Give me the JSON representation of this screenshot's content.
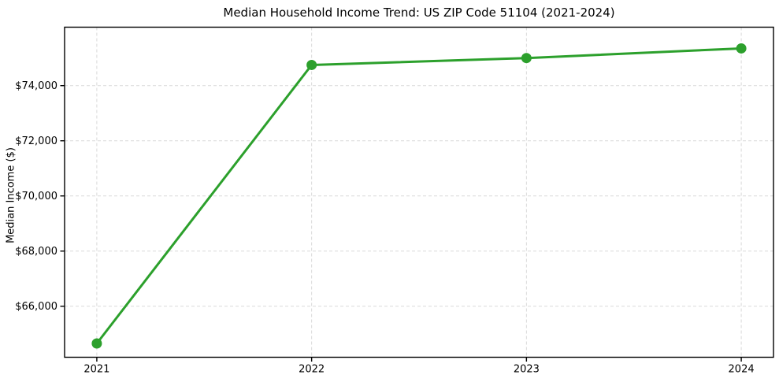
{
  "figure": {
    "background": "#ffffff",
    "plot_background": "#ffffff",
    "spine_color": "#000000",
    "text_color": "#000000"
  },
  "chart_data": {
    "type": "line",
    "title": "Median Household Income Trend: US ZIP Code 51104 (2021-2024)",
    "xlabel": "",
    "ylabel": "Median Income ($)",
    "x": [
      2021,
      2022,
      2023,
      2024
    ],
    "x_tick_labels": [
      "2021",
      "2022",
      "2023",
      "2024"
    ],
    "series": [
      {
        "name": "Median Household Income",
        "values": [
          64650,
          74750,
          75000,
          75350
        ],
        "color": "#2ca02c",
        "marker": "circle"
      }
    ],
    "y_tick_values": [
      66000,
      68000,
      70000,
      72000,
      74000
    ],
    "y_tick_labels": [
      "$66,000",
      "$68,000",
      "$70,000",
      "$72,000",
      "$74,000"
    ],
    "xlim": [
      2020.85,
      2024.15
    ],
    "ylim": [
      64150,
      76120
    ],
    "grid": {
      "visible": true,
      "style": "dashed",
      "color": "#d9d9d9"
    },
    "legend_position": "none",
    "line_width": 3,
    "marker_radius": 6.5
  }
}
